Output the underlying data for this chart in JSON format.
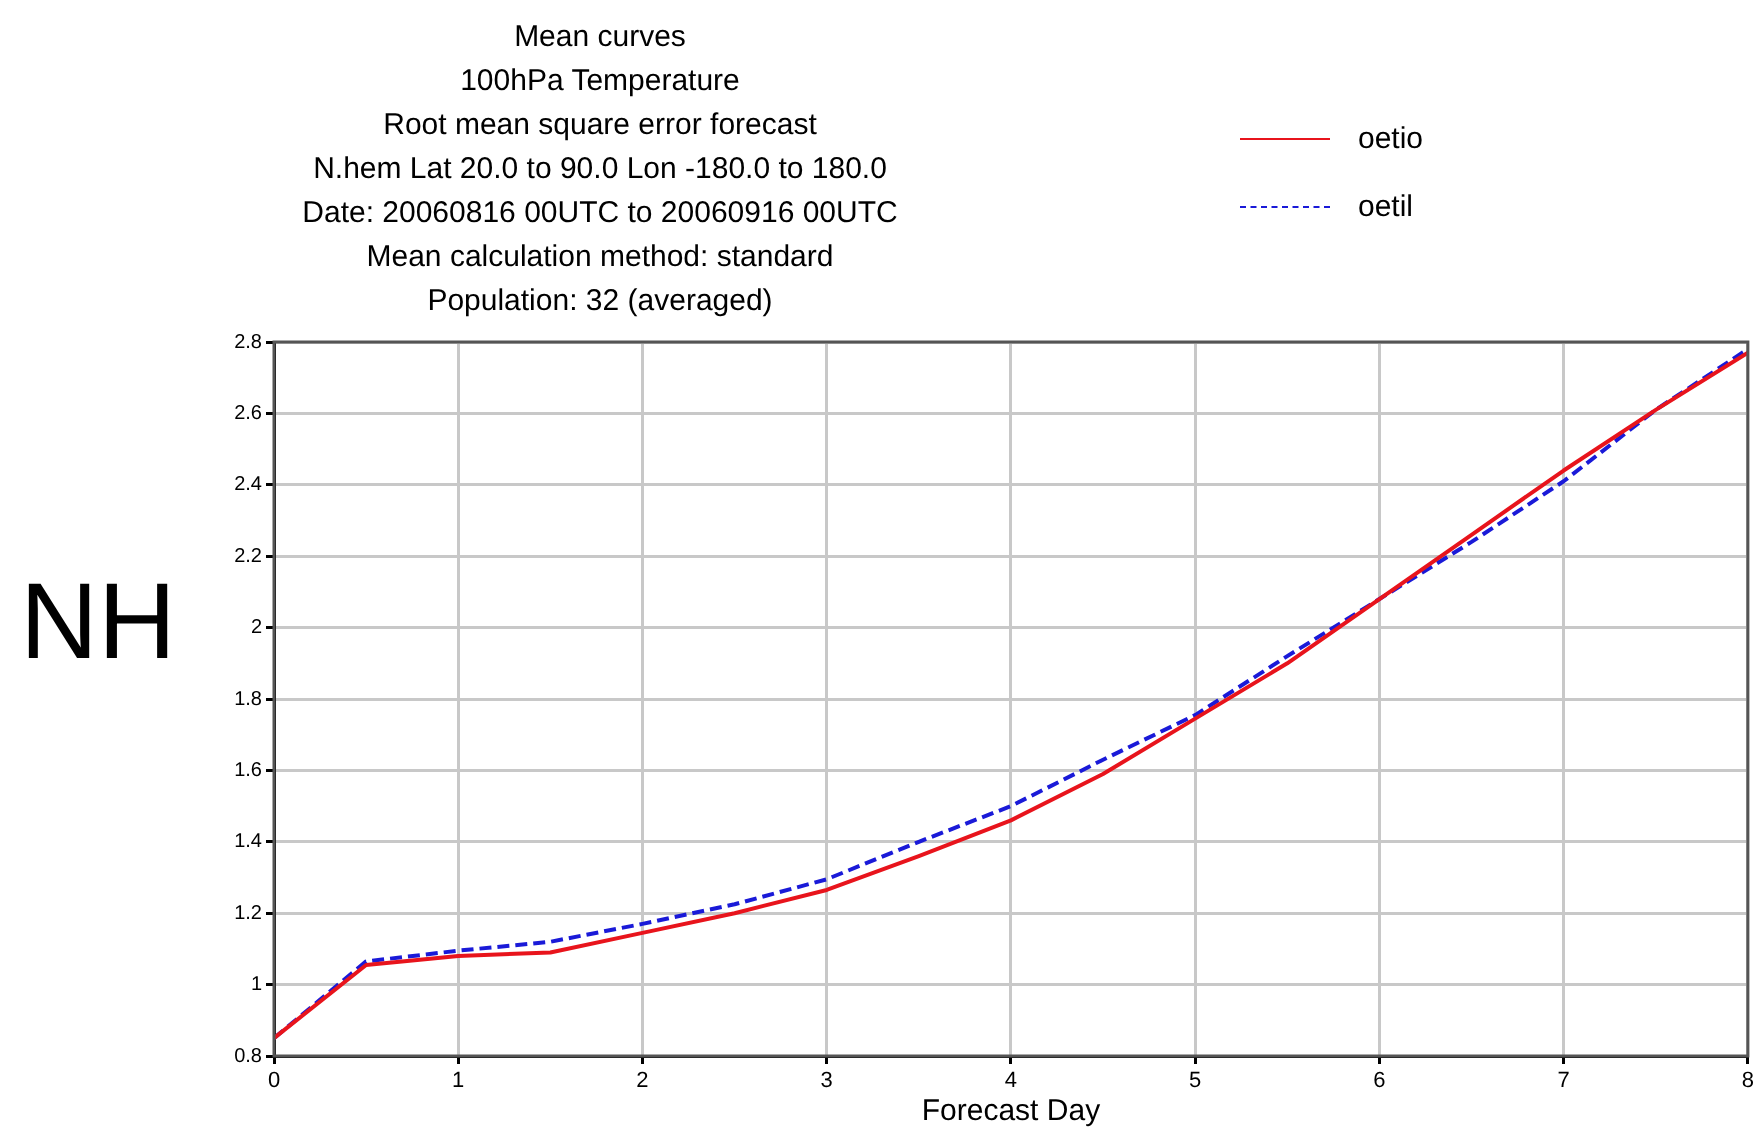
{
  "chart_data": {
    "type": "line",
    "title": "Mean curves\n100hPa Temperature\nRoot mean square error forecast\nN.hem  Lat  20.0 to 90.0 Lon  -180.0 to  180.0\nDate: 20060816 00UTC to 20060916 00UTC\nMean calculation method: standard\nPopulation: 32 (averaged)",
    "xlabel": "Forecast Day",
    "annotations": [
      "NH"
    ],
    "x": [
      0,
      0.5,
      1,
      1.5,
      2,
      2.5,
      3,
      3.5,
      4,
      4.5,
      5,
      5.5,
      6,
      6.5,
      7,
      7.5,
      8
    ],
    "series": [
      {
        "name": "oetio",
        "color": "#e8141c",
        "line_style": "solid",
        "values": [
          0.85,
          1.055,
          1.08,
          1.09,
          1.145,
          1.2,
          1.265,
          1.36,
          1.46,
          1.59,
          1.745,
          1.9,
          2.08,
          2.26,
          2.44,
          2.61,
          2.77
        ]
      },
      {
        "name": "oetil",
        "color": "#1a1ad8",
        "line_style": "dashed",
        "values": [
          0.85,
          1.065,
          1.095,
          1.12,
          1.17,
          1.225,
          1.295,
          1.4,
          1.5,
          1.63,
          1.755,
          1.92,
          2.08,
          2.24,
          2.41,
          2.61,
          2.78
        ]
      }
    ],
    "xlim": [
      0,
      8
    ],
    "xticks": [
      0,
      1,
      2,
      3,
      4,
      5,
      6,
      7,
      8
    ],
    "ylim": [
      0.8,
      2.8
    ],
    "yticks": [
      0.8,
      1,
      1.2,
      1.4,
      1.6,
      1.8,
      2,
      2.2,
      2.4,
      2.6,
      2.8
    ],
    "grid": true,
    "legend": "top right",
    "marker": "none"
  }
}
